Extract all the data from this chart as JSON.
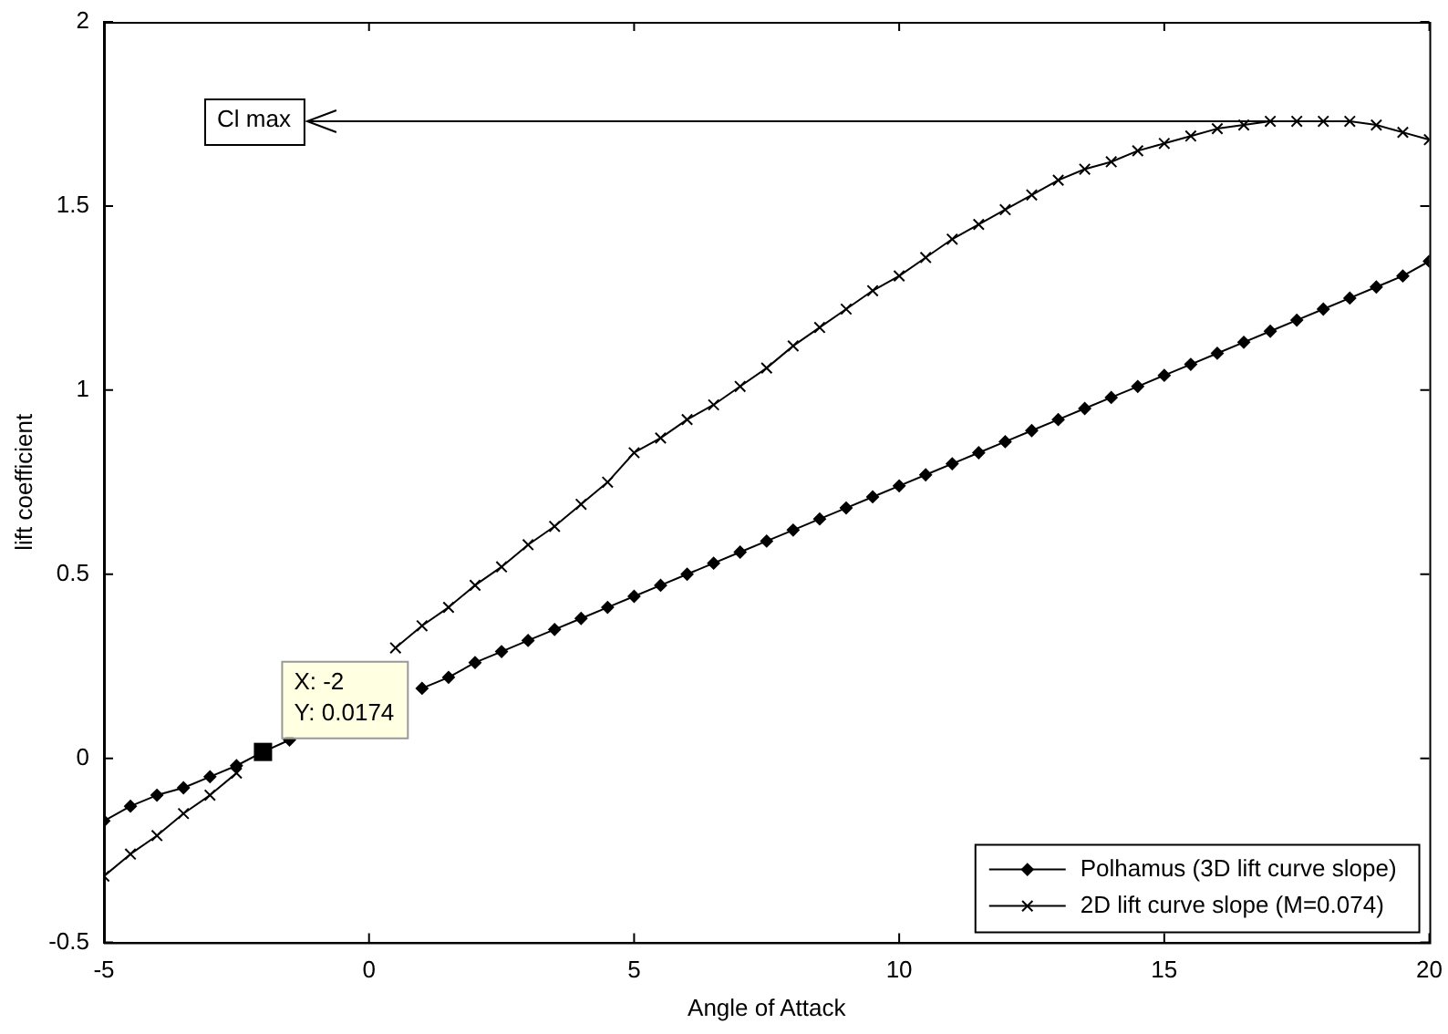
{
  "chart_data": {
    "type": "line",
    "xlabel": "Angle of Attack",
    "ylabel": "lift coefficient",
    "x": [
      -5,
      -4.5,
      -4,
      -3.5,
      -3,
      -2.5,
      -2,
      -1.5,
      -1,
      -0.5,
      0,
      0.5,
      1,
      1.5,
      2,
      2.5,
      3,
      3.5,
      4,
      4.5,
      5,
      5.5,
      6,
      6.5,
      7,
      7.5,
      8,
      8.5,
      9,
      9.5,
      10,
      10.5,
      11,
      11.5,
      12,
      12.5,
      13,
      13.5,
      14,
      14.5,
      15,
      15.5,
      16,
      16.5,
      17,
      17.5,
      18,
      18.5,
      19,
      19.5,
      20
    ],
    "series": [
      {
        "name": "Polhamus (3D lift curve slope)",
        "color": "#000000",
        "marker": "diamond",
        "values": [
          -0.17,
          -0.13,
          -0.1,
          -0.08,
          -0.05,
          -0.02,
          0.0174,
          0.05,
          null,
          null,
          null,
          null,
          0.19,
          0.22,
          0.26,
          0.29,
          0.32,
          0.35,
          0.38,
          0.41,
          0.44,
          0.47,
          0.5,
          0.53,
          0.56,
          0.59,
          0.62,
          0.65,
          0.68,
          0.71,
          0.74,
          0.77,
          0.8,
          0.83,
          0.86,
          0.89,
          0.92,
          0.95,
          0.98,
          1.01,
          1.04,
          1.07,
          1.1,
          1.13,
          1.16,
          1.19,
          1.22,
          1.25,
          1.28,
          1.31,
          1.35
        ]
      },
      {
        "name": "2D lift curve slope (M=0.074)",
        "color": "#000000",
        "marker": "cross",
        "values": [
          -0.32,
          -0.26,
          -0.21,
          -0.15,
          -0.1,
          -0.04,
          null,
          null,
          null,
          null,
          null,
          0.3,
          0.36,
          0.41,
          0.47,
          0.52,
          0.58,
          0.63,
          0.69,
          0.75,
          0.83,
          0.87,
          0.92,
          0.96,
          1.01,
          1.06,
          1.12,
          1.17,
          1.22,
          1.27,
          1.31,
          1.36,
          1.41,
          1.45,
          1.49,
          1.53,
          1.57,
          1.6,
          1.62,
          1.65,
          1.67,
          1.69,
          1.71,
          1.72,
          1.73,
          1.73,
          1.73,
          1.73,
          1.72,
          1.7,
          1.68
        ]
      }
    ],
    "xlim": [
      -5,
      20
    ],
    "xticks": [
      -5,
      0,
      5,
      10,
      15,
      20
    ],
    "ylim": [
      -0.5,
      2
    ],
    "yticks": [
      -0.5,
      0,
      0.5,
      1,
      1.5,
      2
    ],
    "grid": false,
    "legend": "bottom right",
    "line_style": "solid",
    "annotations": [
      {
        "text": "X: -2\nY: 0.0174",
        "x": -2,
        "y": 0.0174
      },
      {
        "text": "Cl max",
        "x": 17.5,
        "y": 1.73
      }
    ]
  }
}
